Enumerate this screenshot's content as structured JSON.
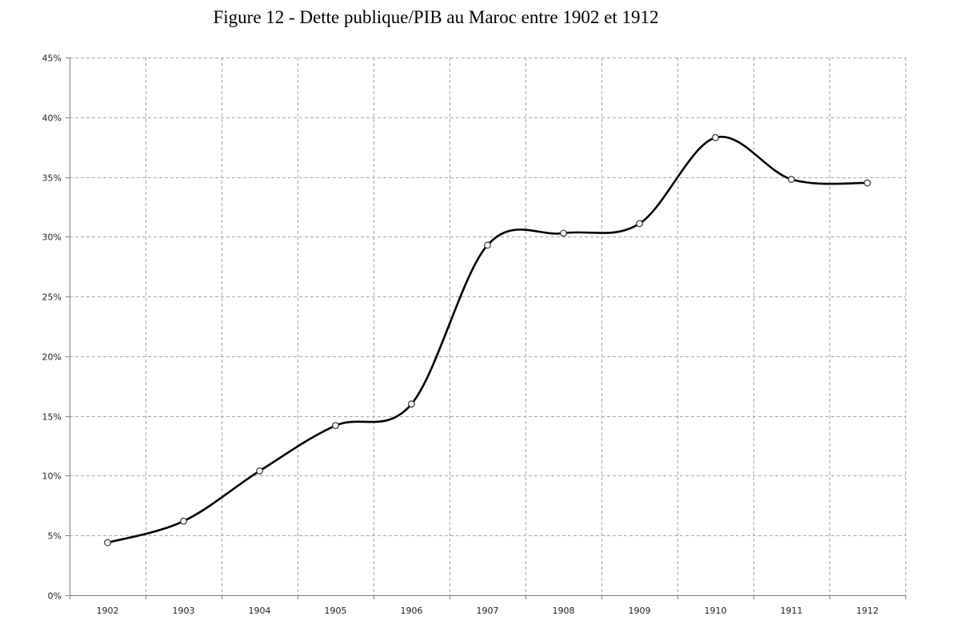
{
  "chart_data": {
    "type": "line",
    "title": "Figure 12 - Dette publique/PIB au Maroc entre 1902 et 1912",
    "xlabel": "",
    "ylabel": "",
    "categories": [
      "1902",
      "1903",
      "1904",
      "1905",
      "1906",
      "1907",
      "1908",
      "1909",
      "1910",
      "1911",
      "1912"
    ],
    "series": [
      {
        "values": [
          4.4,
          6.2,
          10.4,
          14.2,
          16.0,
          29.3,
          30.3,
          31.1,
          38.3,
          34.8,
          34.5
        ]
      }
    ],
    "ylim": [
      0,
      45
    ],
    "yticks": [
      0,
      5,
      10,
      15,
      20,
      25,
      30,
      35,
      40,
      45
    ],
    "ytick_labels": [
      "0%",
      "5%",
      "10%",
      "15%",
      "20%",
      "25%",
      "30%",
      "35%",
      "40%",
      "45%"
    ],
    "grid": true,
    "smooth": true,
    "legend": "none",
    "colors": {
      "line": "#000000",
      "marker_fill": "#ffffff",
      "grid": "#a6a6a6",
      "axis": "#7f7f7f"
    }
  }
}
